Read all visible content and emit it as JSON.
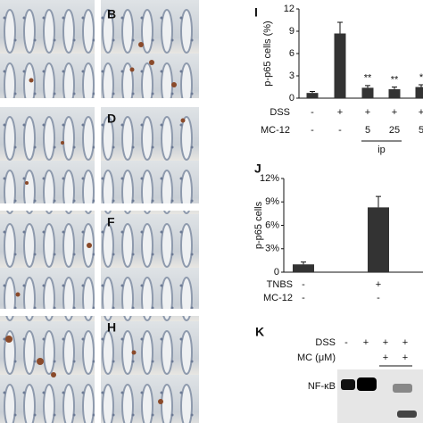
{
  "micrographs": [
    "B",
    "D",
    "F",
    "H"
  ],
  "chart_data": [
    {
      "type": "bar",
      "label": "I",
      "ylabel": "p-p65 cells (%)",
      "categories": [
        null,
        null,
        null,
        null,
        null
      ],
      "values": [
        0.7,
        8.7,
        1.4,
        1.2,
        1.5
      ],
      "errors": [
        0.2,
        1.5,
        0.3,
        0.3,
        0.3
      ],
      "significance": [
        null,
        null,
        "**",
        "**",
        "*"
      ],
      "color": "#333333",
      "ylim": [
        0,
        12
      ],
      "yticks": [
        0,
        3,
        6,
        9,
        12
      ],
      "rows": [
        {
          "label": "DSS",
          "values": [
            "-",
            "+",
            "+",
            "+",
            "+"
          ]
        },
        {
          "label": "MC-12",
          "values": [
            "-",
            "-",
            "5",
            "25",
            "5"
          ]
        }
      ],
      "group_label": "ip"
    },
    {
      "type": "bar",
      "label": "J",
      "ylabel": "p-p65 cells",
      "categories": [
        null,
        null
      ],
      "values": [
        1.0,
        8.3
      ],
      "errors": [
        0.3,
        1.4
      ],
      "color": "#333333",
      "ylim": [
        0,
        12
      ],
      "yticks": [
        0,
        {
          "value": 3,
          "label": "3%"
        },
        {
          "value": 6,
          "label": "6%"
        },
        {
          "value": 9,
          "label": "9%"
        },
        {
          "value": 12,
          "label": "12%"
        }
      ],
      "rows": [
        {
          "label": "TNBS",
          "values": [
            "-",
            "+"
          ]
        },
        {
          "label": "MC-12",
          "values": [
            "-",
            "-"
          ]
        }
      ]
    }
  ],
  "panel_k": {
    "label": "K",
    "rows": [
      {
        "label": "DSS",
        "values": [
          "-",
          "+",
          "+",
          "+"
        ]
      },
      {
        "label": "MC (μM)",
        "values": [
          null,
          null,
          "+",
          "+"
        ]
      }
    ],
    "band_label": "NF-κB"
  }
}
